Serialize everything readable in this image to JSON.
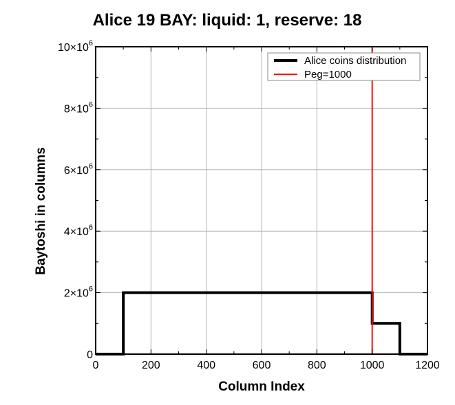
{
  "chart_data": {
    "type": "line",
    "title": "Alice 19 BAY: liquid: 1, reserve: 18",
    "xlabel": "Column Index",
    "ylabel": "Baytoshi in columns",
    "xlim": [
      0,
      1200
    ],
    "ylim": [
      0,
      10000000
    ],
    "x_ticks": [
      "0",
      "200",
      "400",
      "600",
      "800",
      "1000",
      "1200"
    ],
    "y_ticks": [
      {
        "value": 0,
        "base": "0",
        "exp": ""
      },
      {
        "value": 2000000,
        "base": "2×10",
        "exp": "6"
      },
      {
        "value": 4000000,
        "base": "4×10",
        "exp": "6"
      },
      {
        "value": 6000000,
        "base": "6×10",
        "exp": "6"
      },
      {
        "value": 8000000,
        "base": "8×10",
        "exp": "6"
      },
      {
        "value": 10000000,
        "base": "10×10",
        "exp": "6"
      }
    ],
    "grid": true,
    "legend_position": "top-right",
    "series": [
      {
        "name": "Alice coins distribution",
        "color": "#000000",
        "style": "step",
        "x": [
          0,
          100,
          100,
          1000,
          1000,
          1100,
          1100,
          1200
        ],
        "y": [
          0,
          0,
          2000000,
          2000000,
          1000000,
          1000000,
          0,
          0
        ]
      },
      {
        "name": "Peg=1000",
        "color": "#d62020",
        "style": "vline",
        "x": [
          1000,
          1000
        ],
        "y": [
          0,
          10000000
        ]
      }
    ]
  }
}
